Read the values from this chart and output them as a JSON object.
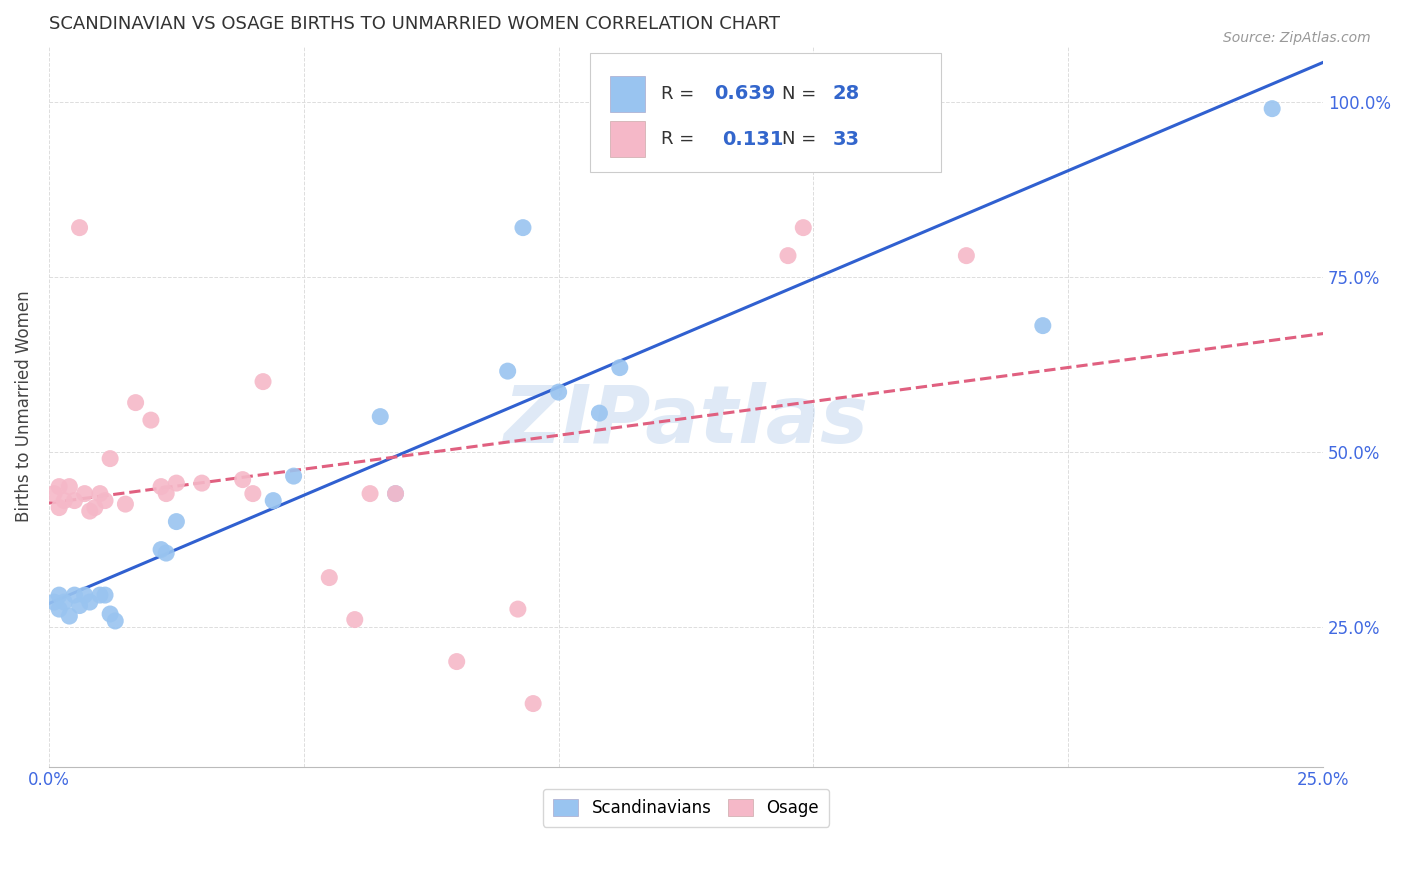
{
  "title": "SCANDINAVIAN VS OSAGE BIRTHS TO UNMARRIED WOMEN CORRELATION CHART",
  "source": "Source: ZipAtlas.com",
  "ylabel": "Births to Unmarried Women",
  "xlim": [
    0.0,
    0.25
  ],
  "ylim": [
    0.05,
    1.08
  ],
  "legend_R_scand": "0.639",
  "legend_N_scand": "28",
  "legend_R_osage": "0.131",
  "legend_N_osage": "33",
  "scand_color": "#99c4f0",
  "osage_color": "#f5b8c8",
  "scand_line_color": "#3060d0",
  "osage_line_color": "#e06080",
  "watermark": "ZIPatlas",
  "scand_x": [
    0.001,
    0.002,
    0.002,
    0.003,
    0.004,
    0.005,
    0.006,
    0.007,
    0.008,
    0.01,
    0.011,
    0.012,
    0.013,
    0.022,
    0.023,
    0.025,
    0.044,
    0.048,
    0.065,
    0.068,
    0.09,
    0.093,
    0.1,
    0.108,
    0.112,
    0.16,
    0.195,
    0.24
  ],
  "scand_y": [
    0.285,
    0.295,
    0.275,
    0.285,
    0.265,
    0.295,
    0.28,
    0.295,
    0.285,
    0.295,
    0.295,
    0.268,
    0.258,
    0.36,
    0.355,
    0.4,
    0.43,
    0.465,
    0.55,
    0.44,
    0.615,
    0.82,
    0.585,
    0.555,
    0.62,
    0.95,
    0.68,
    0.99
  ],
  "osage_x": [
    0.001,
    0.002,
    0.002,
    0.003,
    0.004,
    0.005,
    0.006,
    0.007,
    0.008,
    0.009,
    0.01,
    0.011,
    0.012,
    0.015,
    0.017,
    0.02,
    0.022,
    0.023,
    0.025,
    0.03,
    0.038,
    0.04,
    0.042,
    0.055,
    0.06,
    0.063,
    0.068,
    0.08,
    0.092,
    0.095,
    0.145,
    0.148,
    0.18
  ],
  "osage_y": [
    0.44,
    0.45,
    0.42,
    0.43,
    0.45,
    0.43,
    0.82,
    0.44,
    0.415,
    0.42,
    0.44,
    0.43,
    0.49,
    0.425,
    0.57,
    0.545,
    0.45,
    0.44,
    0.455,
    0.455,
    0.46,
    0.44,
    0.6,
    0.32,
    0.26,
    0.44,
    0.44,
    0.2,
    0.275,
    0.14,
    0.78,
    0.82,
    0.78
  ],
  "background_color": "#ffffff",
  "grid_color": "#dddddd"
}
